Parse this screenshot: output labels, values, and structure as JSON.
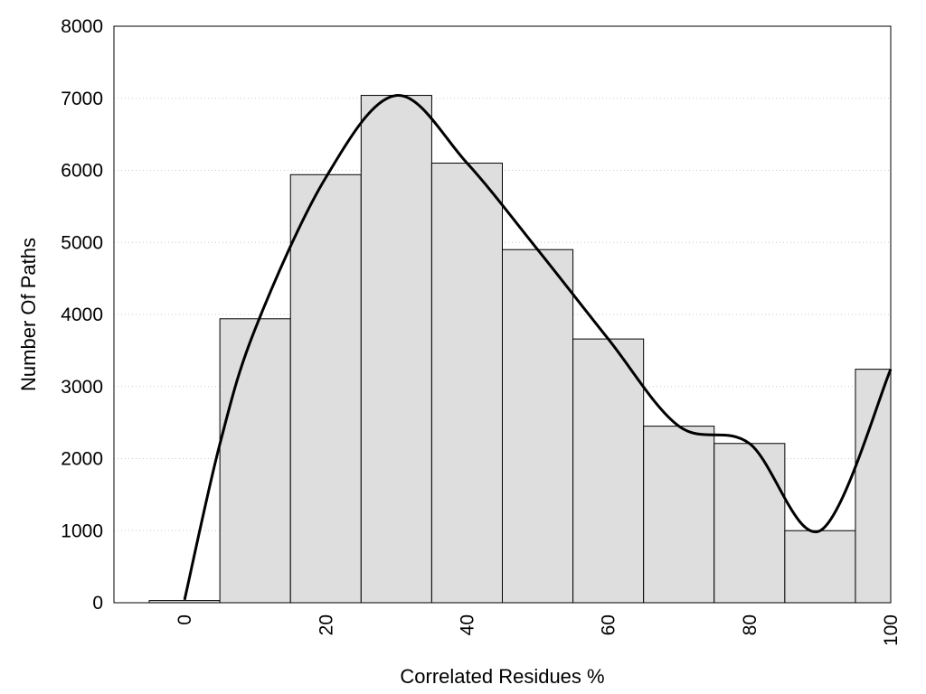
{
  "chart_data": {
    "type": "bar",
    "title": "",
    "xlabel": "Correlated Residues %",
    "ylabel": "Number Of Paths",
    "xlim": [
      -10,
      100
    ],
    "ylim": [
      0,
      8000
    ],
    "x_ticks": [
      "0",
      "20",
      "40",
      "60",
      "80",
      "100"
    ],
    "x_tick_values": [
      0,
      20,
      40,
      60,
      80,
      100
    ],
    "y_ticks": [
      "0",
      "1000",
      "2000",
      "3000",
      "4000",
      "5000",
      "6000",
      "7000",
      "8000"
    ],
    "y_tick_values": [
      0,
      1000,
      2000,
      3000,
      4000,
      5000,
      6000,
      7000,
      8000
    ],
    "grid": "horizontal dotted",
    "series": [
      {
        "type": "bar",
        "x": [
          0,
          10,
          20,
          30,
          40,
          50,
          60,
          70,
          80,
          90,
          100
        ],
        "values": [
          30,
          3940,
          5940,
          7040,
          6100,
          4900,
          3660,
          2450,
          2210,
          1000,
          3240
        ],
        "color": "#dedede"
      },
      {
        "type": "line",
        "x": [
          0,
          5,
          10,
          20,
          30,
          40,
          50,
          60,
          70,
          80,
          90,
          100
        ],
        "values": [
          40,
          2200,
          3800,
          5900,
          7040,
          6100,
          4900,
          3660,
          2450,
          2210,
          1000,
          3240
        ],
        "color": "#000000"
      }
    ]
  }
}
